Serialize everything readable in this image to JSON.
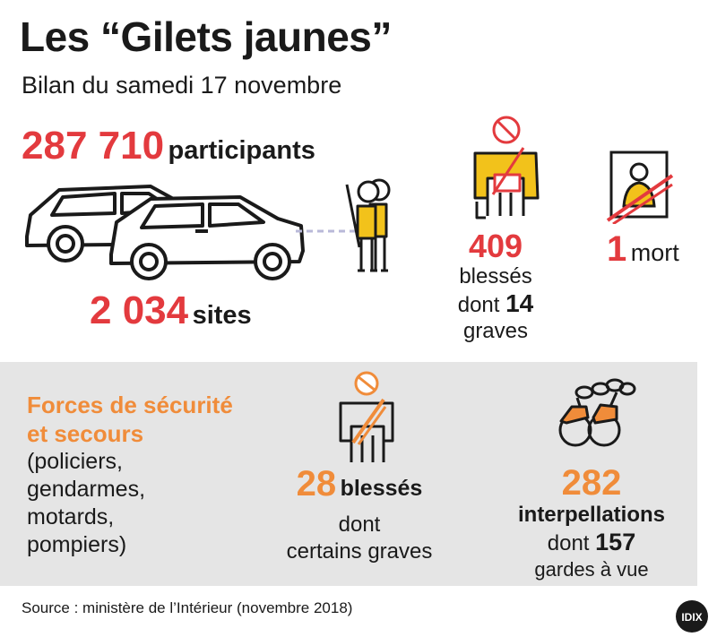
{
  "title": "Les “Gilets jaunes”",
  "subtitle": "Bilan du samedi 17 novembre",
  "participants": {
    "value": "287 710",
    "label": "participants"
  },
  "sites": {
    "value": "2 034",
    "label": "sites"
  },
  "injured": {
    "value": "409",
    "line1": "blessés",
    "line2_prefix": "dont",
    "line2_value": "14",
    "line3": "graves"
  },
  "dead": {
    "value": "1",
    "label": "mort"
  },
  "forces": {
    "heading_line1": "Forces de sécurité",
    "heading_line2": "et secours",
    "detail_lines": [
      "(policiers,",
      "gendarmes,",
      "motards,",
      "pompiers)"
    ]
  },
  "forces_injured": {
    "value": "28",
    "label": "blessés",
    "line2": "dont",
    "line3": "certains graves"
  },
  "arrests": {
    "value": "282",
    "label": "interpellations",
    "line3_prefix": "dont",
    "line3_value": "157",
    "line4": "gardes à vue"
  },
  "source": "Source : ministère de l’Intérieur (novembre 2018)",
  "logo_text": "IDIX",
  "colors": {
    "red": "#e33a3e",
    "orange": "#f08c3a",
    "yellow": "#f2c21b",
    "panel": "#e5e5e5",
    "text": "#1a1a1a"
  },
  "icons": [
    "car-icon",
    "protesters-icon",
    "injured-person-icon",
    "portrait-death-icon",
    "injured-officer-icon",
    "handcuffs-icon"
  ]
}
